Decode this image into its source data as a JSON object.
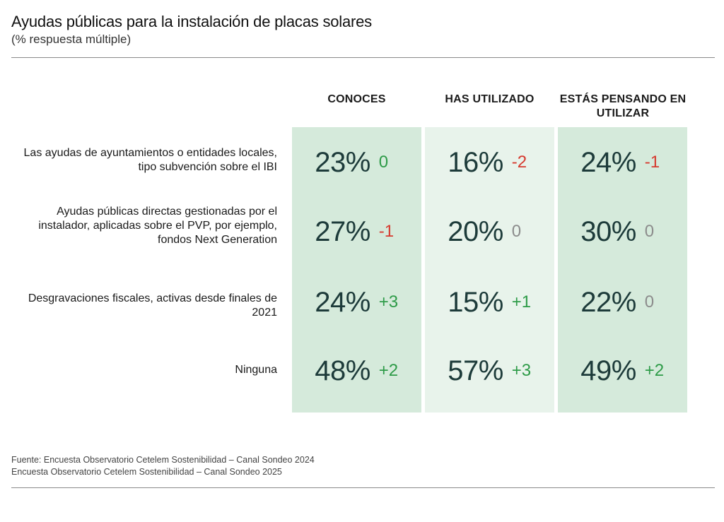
{
  "header": {
    "title": "Ayudas públicas para la instalación de placas solares",
    "subtitle": "(% respuesta múltiple)"
  },
  "colors": {
    "col_dark": "#d5eadb",
    "col_light": "#e8f3eb",
    "value_text": "#1d3b3a",
    "positive": "#2e9b48",
    "negative": "#d63a2f",
    "neutral": "#8c8c8c"
  },
  "chart_data": {
    "type": "table",
    "title": "Ayudas públicas para la instalación de placas solares",
    "subtitle": "(% respuesta múltiple)",
    "columns": [
      "CONOCES",
      "HAS UTILIZADO",
      "ESTÁS PENSANDO EN UTILIZAR"
    ],
    "rows": [
      {
        "label": "Las ayudas de ayuntamientos o entidades locales, tipo subvención sobre el IBI",
        "cells": [
          {
            "value": "23%",
            "change": "0",
            "change_sign": "zero-pos"
          },
          {
            "value": "16%",
            "change": "-2",
            "change_sign": "neg"
          },
          {
            "value": "24%",
            "change": "-1",
            "change_sign": "neg"
          }
        ]
      },
      {
        "label": "Ayudas públicas directas gestionadas por el instalador, aplicadas sobre el PVP, por ejemplo, fondos Next Generation",
        "cells": [
          {
            "value": "27%",
            "change": "-1",
            "change_sign": "neg"
          },
          {
            "value": "20%",
            "change": "0",
            "change_sign": "zero"
          },
          {
            "value": "30%",
            "change": "0",
            "change_sign": "zero"
          }
        ]
      },
      {
        "label": "Desgravaciones fiscales, activas desde finales de 2021",
        "cells": [
          {
            "value": "24%",
            "change": "+3",
            "change_sign": "pos"
          },
          {
            "value": "15%",
            "change": "+1",
            "change_sign": "pos"
          },
          {
            "value": "22%",
            "change": "0",
            "change_sign": "zero"
          }
        ]
      },
      {
        "label": "Ninguna",
        "cells": [
          {
            "value": "48%",
            "change": "+2",
            "change_sign": "pos"
          },
          {
            "value": "57%",
            "change": "+3",
            "change_sign": "pos"
          },
          {
            "value": "49%",
            "change": "+2",
            "change_sign": "pos"
          }
        ]
      }
    ]
  },
  "source": {
    "line1": "Fuente: Encuesta Observatorio Cetelem Sostenibilidad – Canal Sondeo 2024",
    "line2": "Encuesta Observatorio Cetelem Sostenibilidad – Canal Sondeo 2025"
  }
}
